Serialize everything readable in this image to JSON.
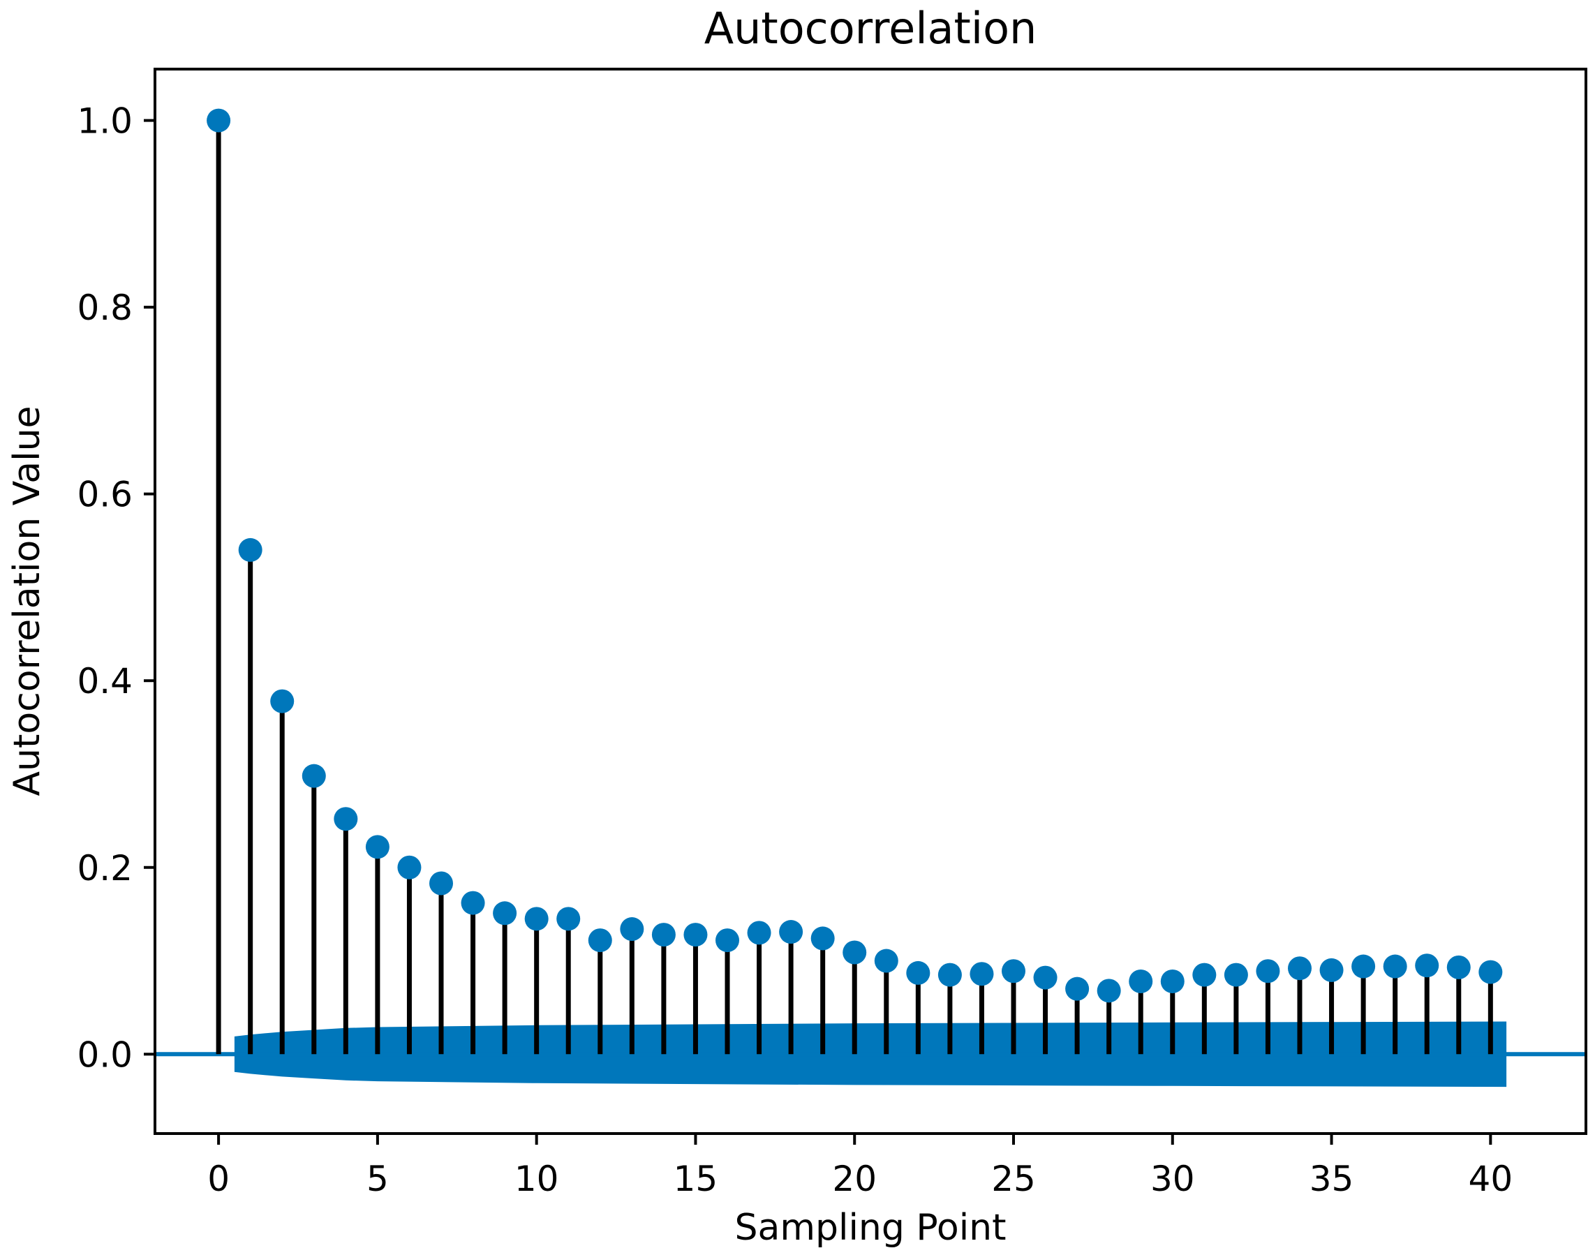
{
  "chart_data": {
    "type": "stem",
    "title": "Autocorrelation",
    "xlabel": "Sampling Point",
    "ylabel": "Autocorrelation Value",
    "xlim": [
      -2,
      43
    ],
    "ylim": [
      -0.085,
      1.055
    ],
    "x_ticks": [
      0,
      5,
      10,
      15,
      20,
      25,
      30,
      35,
      40
    ],
    "x_tick_labels": [
      "0",
      "5",
      "10",
      "15",
      "20",
      "25",
      "30",
      "35",
      "40"
    ],
    "y_ticks": [
      0.0,
      0.2,
      0.4,
      0.6,
      0.8,
      1.0
    ],
    "y_tick_labels": [
      "0.0",
      "0.2",
      "0.4",
      "0.6",
      "0.8",
      "1.0"
    ],
    "lags": [
      0,
      1,
      2,
      3,
      4,
      5,
      6,
      7,
      8,
      9,
      10,
      11,
      12,
      13,
      14,
      15,
      16,
      17,
      18,
      19,
      20,
      21,
      22,
      23,
      24,
      25,
      26,
      27,
      28,
      29,
      30,
      31,
      32,
      33,
      34,
      35,
      36,
      37,
      38,
      39,
      40
    ],
    "values": [
      1.0,
      0.54,
      0.378,
      0.298,
      0.252,
      0.222,
      0.2,
      0.183,
      0.162,
      0.151,
      0.145,
      0.145,
      0.122,
      0.134,
      0.128,
      0.128,
      0.122,
      0.13,
      0.131,
      0.124,
      0.109,
      0.1,
      0.087,
      0.085,
      0.086,
      0.089,
      0.082,
      0.07,
      0.068,
      0.078,
      0.078,
      0.085,
      0.085,
      0.089,
      0.092,
      0.09,
      0.094,
      0.094,
      0.095,
      0.093,
      0.088
    ],
    "confidence_band": {
      "x": [
        0.5,
        1,
        2,
        3,
        4,
        5,
        10,
        20,
        30,
        40.5
      ],
      "upper": [
        0.019,
        0.021,
        0.024,
        0.026,
        0.028,
        0.029,
        0.031,
        0.033,
        0.034,
        0.035
      ]
    },
    "grid": false,
    "legend": "none",
    "colors": {
      "marker": "#0077bb",
      "band": "#0077bb",
      "stem": "#000000",
      "baseline": "#0077bb"
    }
  }
}
